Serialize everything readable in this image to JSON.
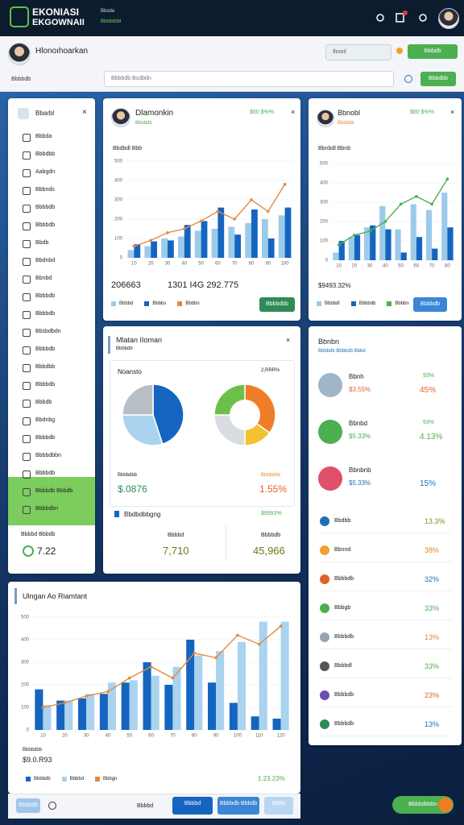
{
  "header": {
    "logo_line1": "EKONIASI",
    "logo_line2": "EKGOWNAII",
    "sub1": "Bbsda",
    "sub2": "Bbbbdbbl"
  },
  "toolbar": {
    "user": "Hlonoıhoarkan",
    "search": "Iloıoıl",
    "button": "Ibbbdb"
  },
  "filter": {
    "label": "Bbbbdb",
    "placeholder": "Bbbbdb Bsdbdn",
    "button": "Bbbdbb"
  },
  "sidebar": {
    "title": "Bbarbl",
    "items": [
      "Bbbda",
      "Bbbdbb",
      "Aabgdn",
      "Bbbnds",
      "Bbbbdb",
      "Bbbbdb",
      "Bbdb",
      "Bbdnbd",
      "Bbnbd",
      "Bbbbdb",
      "Bbbbdb",
      "Bbsbdbdn",
      "Bbbbdb",
      "Bbbdbb",
      "Bbbbdb",
      "Bbbdb",
      "Bbdnbg",
      "Bbbbdb",
      "Bbbbdbbn",
      "Bbbbdb",
      "Bbbbdb Bbbdb",
      "Bbbbdbn"
    ],
    "footer_label": "Bbbbd Bbbdb",
    "footer_value": "7.22"
  },
  "cards": [
    {
      "title": "Dlamonkin",
      "sub": "Bbbbdb",
      "corner": "$60 $%%",
      "chart_title": "Bbdbdl Bbb",
      "stat1": "206663",
      "stat2": "1301 I4G 292.775",
      "button": "Bbbbdbb"
    },
    {
      "title": "Bbnobl",
      "sub": "Bbbbdb",
      "corner": "$60 $%%",
      "chart_title": "Bbnbdl Bbnb",
      "stat1": "$9493.32%",
      "button": "Bbbbdb"
    },
    {
      "title": "Mlatan IIoman",
      "sub": "Bbbbdb",
      "box_title": "Noansto",
      "box_value": "2,RRR%",
      "label1": "Bbbbdbb",
      "stat1": "$.0876",
      "label2": "Bbbbdbb",
      "stat2": "1.55%",
      "row_label": "Bbdbdbbgng",
      "row_value": "$9993%",
      "col1_label": "Bbbbd",
      "col1_value": "7,710",
      "col2_label": "Bbbbdb",
      "col2_value": "45,966"
    },
    {
      "title": "Ulngan Ao Riamtant",
      "footer_label": "Bbbbdbb",
      "footer_value": "$9.0.R93",
      "footer_right": "1.23.23%"
    }
  ],
  "list": {
    "title": "Bbnbn",
    "subtitle": "Bbbbdb Bbbbdb Bbbd",
    "big": [
      {
        "label": "Bbnh",
        "sub": "$3.55%",
        "top": "93%",
        "value": "45%"
      },
      {
        "label": "Bbnbd",
        "sub": "$5.33%",
        "top": "93%",
        "value": "4.13%"
      },
      {
        "label": "Bbnbnb",
        "sub": "$5.33%",
        "top": "",
        "value": "15%"
      }
    ],
    "small": [
      {
        "label": "Bbdbb",
        "value": "13.3%"
      },
      {
        "label": "Bbnnd",
        "value": "38%"
      },
      {
        "label": "Bbbbdb",
        "value": "32%"
      },
      {
        "label": "Bbbgb",
        "value": "33%"
      },
      {
        "label": "Bbbbdb",
        "value": "13%"
      },
      {
        "label": "Bbbbdl",
        "value": "33%"
      },
      {
        "label": "Bbbbdb",
        "value": "23%"
      },
      {
        "label": "Bbbbdb",
        "value": "13%"
      }
    ]
  },
  "bottom": {
    "b1": "Bbbbdb",
    "b2": "Bbbbd",
    "b3": "Bbbbdb Bbbdb",
    "b4": "Bbbb",
    "pill": "Bbbbdbbbn"
  },
  "chart_data": [
    {
      "type": "bar",
      "categories": [
        "10",
        "20",
        "30",
        "40",
        "50",
        "60",
        "70",
        "80",
        "90",
        "100"
      ],
      "ylim": [
        0,
        500
      ],
      "yticks": [
        0,
        100,
        200,
        300,
        400,
        500
      ],
      "grid": true,
      "series": [
        {
          "name": "Bbbbd",
          "color": "#9ccbea",
          "values": [
            40,
            60,
            100,
            110,
            140,
            150,
            160,
            180,
            200,
            220
          ]
        },
        {
          "name": "Bbbbs",
          "color": "#1565c0",
          "values": [
            70,
            85,
            90,
            170,
            190,
            260,
            120,
            250,
            100,
            260
          ]
        },
        {
          "name": "Bbbbn",
          "color": "#e5883f",
          "type": "line",
          "values": [
            60,
            90,
            130,
            150,
            190,
            240,
            200,
            300,
            240,
            380
          ]
        }
      ]
    },
    {
      "type": "bar",
      "categories": [
        "10",
        "20",
        "30",
        "40",
        "50",
        "60",
        "70",
        "80"
      ],
      "ylim": [
        0,
        500
      ],
      "yticks": [
        0,
        100,
        200,
        300,
        400,
        500
      ],
      "grid": true,
      "series": [
        {
          "name": "Bbbbdl",
          "color": "#9ccbea",
          "values": [
            40,
            120,
            170,
            280,
            160,
            290,
            260,
            350
          ]
        },
        {
          "name": "Bbbbdb",
          "color": "#1565c0",
          "values": [
            100,
            130,
            180,
            160,
            40,
            120,
            60,
            170
          ]
        },
        {
          "name": "Bbbbn",
          "color": "#4caf50",
          "type": "line",
          "values": [
            80,
            130,
            150,
            200,
            290,
            330,
            290,
            420
          ]
        }
      ]
    },
    {
      "type": "pie",
      "values": [
        45,
        30,
        25
      ],
      "colors": [
        "#1565c0",
        "#a9d3ef",
        "#b8bec6"
      ]
    },
    {
      "type": "pie",
      "donut": true,
      "values": [
        35,
        15,
        25,
        25
      ],
      "colors": [
        "#ef7d28",
        "#f2c230",
        "#d9dde2",
        "#6cc04a"
      ]
    },
    {
      "type": "bar",
      "categories": [
        "10",
        "20",
        "30",
        "40",
        "50",
        "60",
        "70",
        "80",
        "90",
        "100",
        "110",
        "120"
      ],
      "ylim": [
        0,
        500
      ],
      "yticks": [
        0,
        100,
        200,
        300,
        400,
        500
      ],
      "grid": true,
      "series": [
        {
          "name": "Bbbbdb",
          "color": "#1565c0",
          "values": [
            180,
            130,
            140,
            160,
            210,
            300,
            200,
            400,
            210,
            120,
            60,
            50
          ]
        },
        {
          "name": "Bbbbd",
          "color": "#a9d3ef",
          "values": [
            110,
            130,
            160,
            210,
            220,
            240,
            280,
            330,
            350,
            390,
            480,
            480
          ]
        },
        {
          "name": "Bbbgn",
          "color": "#e5883f",
          "type": "line",
          "values": [
            100,
            120,
            150,
            170,
            230,
            280,
            230,
            340,
            320,
            420,
            380,
            460
          ]
        }
      ]
    }
  ]
}
